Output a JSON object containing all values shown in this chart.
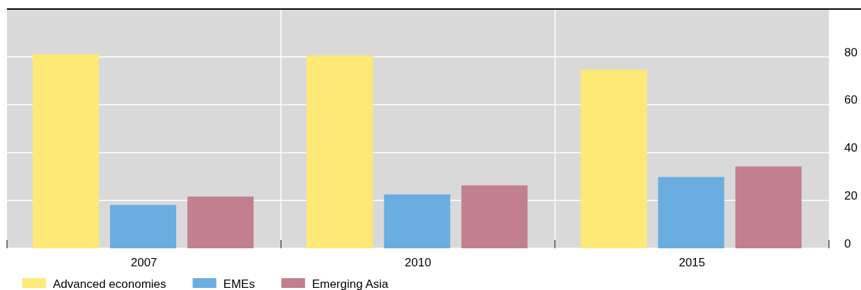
{
  "chart_data": {
    "type": "bar",
    "categories": [
      "2007",
      "2010",
      "2015"
    ],
    "series": [
      {
        "name": "Advanced economies",
        "color": "#ffe976",
        "values": [
          81.2,
          80.6,
          74.7
        ]
      },
      {
        "name": "EMEs",
        "color": "#6aade0",
        "values": [
          18.1,
          22.5,
          29.8
        ]
      },
      {
        "name": "Emerging Asia",
        "color": "#c27f8e",
        "values": [
          21.6,
          26.3,
          34.2
        ]
      }
    ],
    "ylim": [
      0,
      100
    ],
    "yticks": [
      0,
      20,
      40,
      60,
      80
    ],
    "grid": true,
    "legend": "bottom left"
  }
}
